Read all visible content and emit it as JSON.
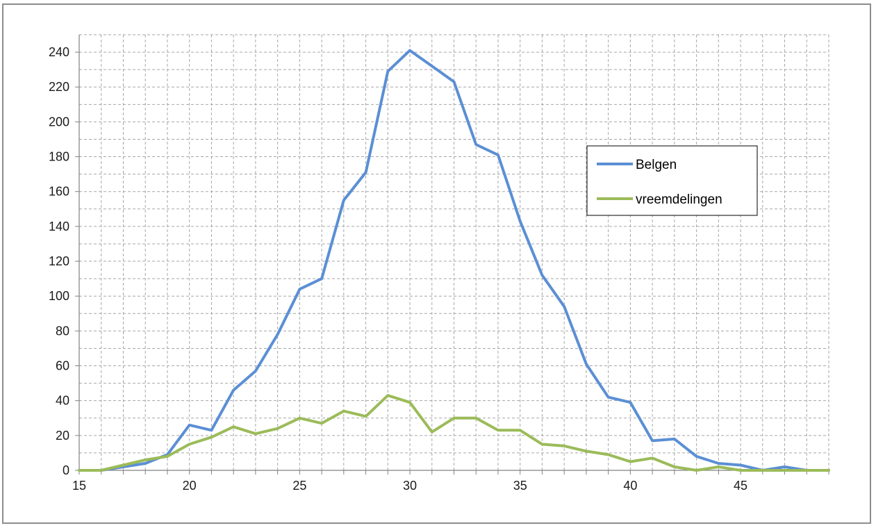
{
  "chart_data": {
    "type": "line",
    "title": "",
    "xlabel": "",
    "ylabel": "",
    "xlim": [
      15,
      49
    ],
    "ylim": [
      0,
      250
    ],
    "x_ticks": [
      15,
      20,
      25,
      30,
      35,
      40,
      45
    ],
    "y_ticks": [
      0,
      20,
      40,
      60,
      80,
      100,
      120,
      140,
      160,
      180,
      200,
      220,
      240
    ],
    "grid": true,
    "grid_style": "dashed",
    "legend_position": "right",
    "series": [
      {
        "name": "Belgen",
        "color": "#5b8fd4",
        "x": [
          15,
          16,
          17,
          18,
          19,
          20,
          21,
          22,
          23,
          24,
          25,
          26,
          27,
          28,
          29,
          30,
          31,
          32,
          33,
          34,
          35,
          36,
          37,
          38,
          39,
          40,
          41,
          42,
          43,
          44,
          45,
          46,
          47,
          48,
          49
        ],
        "values": [
          0,
          0,
          2,
          4,
          9,
          26,
          23,
          46,
          57,
          78,
          104,
          110,
          155,
          171,
          229,
          241,
          232,
          223,
          187,
          181,
          143,
          112,
          94,
          61,
          42,
          39,
          17,
          18,
          8,
          4,
          3,
          0,
          2,
          0,
          0
        ]
      },
      {
        "name": "vreemdelingen",
        "color": "#9bbb59",
        "x": [
          15,
          16,
          17,
          18,
          19,
          20,
          21,
          22,
          23,
          24,
          25,
          26,
          27,
          28,
          29,
          30,
          31,
          32,
          33,
          34,
          35,
          36,
          37,
          38,
          39,
          40,
          41,
          42,
          43,
          44,
          45,
          46,
          47,
          48,
          49
        ],
        "values": [
          0,
          0,
          3,
          6,
          8,
          15,
          19,
          25,
          21,
          24,
          30,
          27,
          34,
          31,
          43,
          39,
          22,
          30,
          30,
          23,
          23,
          15,
          14,
          11,
          9,
          5,
          7,
          2,
          0,
          2,
          0,
          0,
          0,
          0,
          0
        ]
      }
    ]
  }
}
